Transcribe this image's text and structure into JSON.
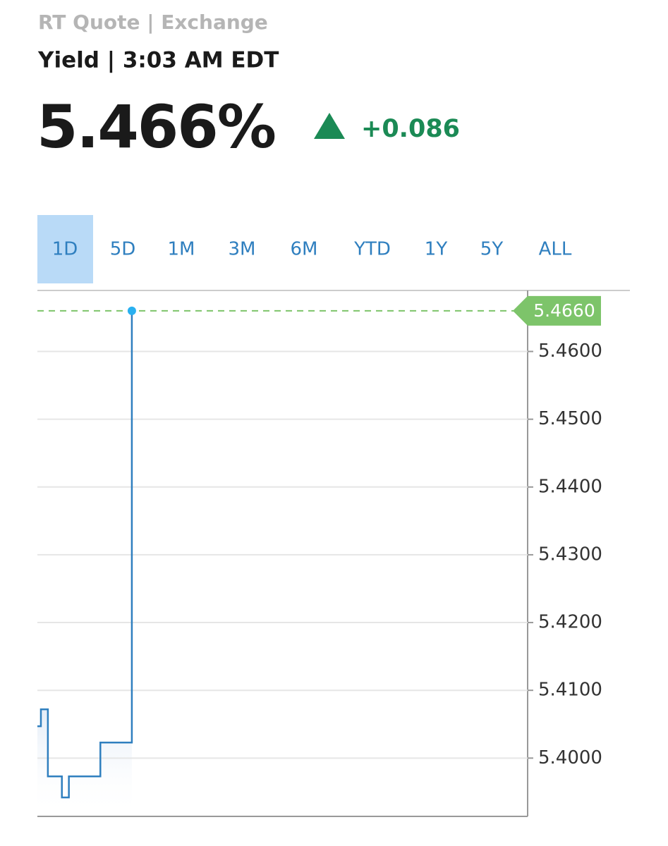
{
  "header": {
    "source": "RT Quote | Exchange",
    "subtitle": "Yield | 3:03 AM EDT",
    "price": "5.466%",
    "change": "+0.086"
  },
  "tabs": {
    "items": [
      "1D",
      "5D",
      "1M",
      "3M",
      "6M",
      "YTD",
      "1Y",
      "5Y",
      "ALL"
    ],
    "active": 0
  },
  "chart_data": {
    "type": "line",
    "step": true,
    "color": "#2f7fbf",
    "categories": [
      null,
      null,
      null,
      null,
      null,
      null,
      null,
      null,
      null,
      null,
      null,
      null,
      null,
      null,
      null,
      null,
      null,
      null,
      null,
      null,
      null,
      null,
      null,
      null,
      null,
      null,
      null,
      null
    ],
    "values": [
      5.4047,
      5.4072,
      5.4072,
      5.3973,
      5.3973,
      5.3973,
      5.3973,
      5.3942,
      5.3942,
      5.3973,
      5.3973,
      5.3973,
      5.3973,
      5.3973,
      5.3973,
      5.3973,
      5.3973,
      5.3973,
      5.4023,
      5.4023,
      5.4023,
      5.4023,
      5.4023,
      5.4023,
      5.4023,
      5.4023,
      5.4023,
      5.466
    ],
    "current": {
      "value": 5.466,
      "label": "5.4660",
      "color": "#7dc46a"
    },
    "ylim": [
      5.3914,
      5.469
    ],
    "yticks": [
      {
        "value": 5.4,
        "label": "5.4000"
      },
      {
        "value": 5.41,
        "label": "5.4100"
      },
      {
        "value": 5.42,
        "label": "5.4200"
      },
      {
        "value": 5.43,
        "label": "5.4300"
      },
      {
        "value": 5.44,
        "label": "5.4400"
      },
      {
        "value": 5.45,
        "label": "5.4500"
      },
      {
        "value": 5.46,
        "label": "5.4600"
      }
    ],
    "grid": true
  }
}
